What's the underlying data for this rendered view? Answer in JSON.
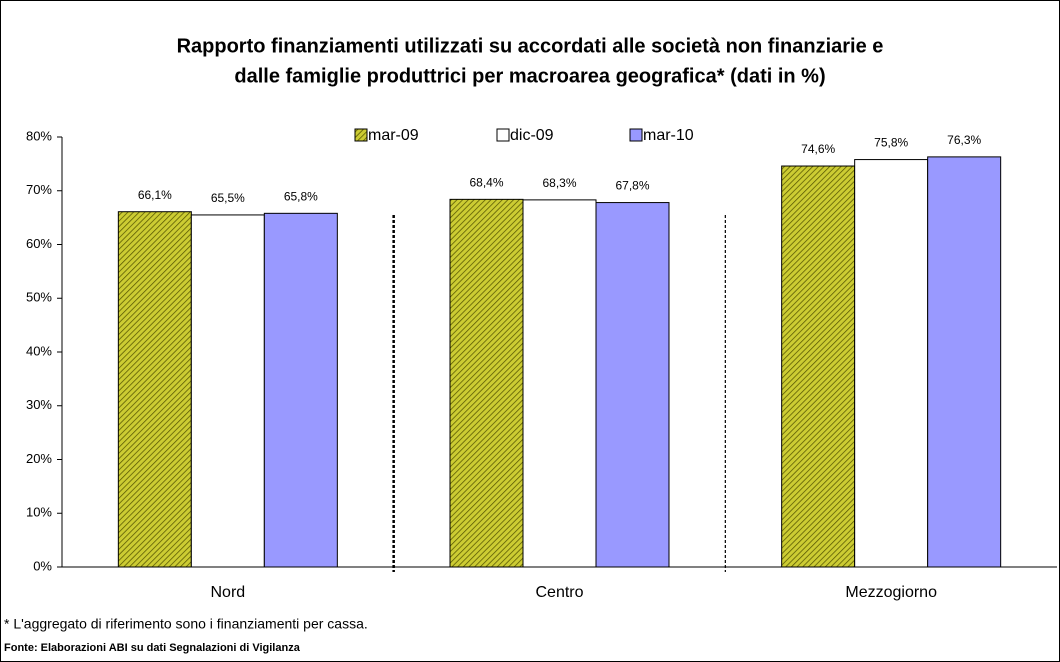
{
  "chart_data": {
    "type": "bar",
    "title": [
      "Rapporto finanziamenti utilizzati su accordati alle società non finanziarie e",
      "dalle famiglie produttrici per macroarea geografica* (dati in %)"
    ],
    "categories": [
      "Nord",
      "Centro",
      "Mezzogiorno"
    ],
    "series": [
      {
        "name": "mar-09",
        "color": "#cccc33",
        "pattern": "hatch",
        "values": [
          66.1,
          68.4,
          74.6
        ],
        "value_labels": [
          "66,1%",
          "68,4%",
          "74,6%"
        ]
      },
      {
        "name": "dic-09",
        "color": "#ffffff",
        "values": [
          65.5,
          68.3,
          75.8
        ],
        "value_labels": [
          "65,5%",
          "68,3%",
          "75,8%"
        ]
      },
      {
        "name": "mar-10",
        "color": "#9999ff",
        "values": [
          65.8,
          67.8,
          76.3
        ],
        "value_labels": [
          "65,8%",
          "67,8%",
          "76,3%"
        ]
      }
    ],
    "ylim": [
      0,
      80
    ],
    "yticks": [
      {
        "value": 0,
        "label": "0%"
      },
      {
        "value": 10,
        "label": "10%"
      },
      {
        "value": 20,
        "label": "20%"
      },
      {
        "value": 30,
        "label": "30%"
      },
      {
        "value": 40,
        "label": "40%"
      },
      {
        "value": 50,
        "label": "50%"
      },
      {
        "value": 60,
        "label": "60%"
      },
      {
        "value": 70,
        "label": "70%"
      },
      {
        "value": 80,
        "label": "80%"
      }
    ],
    "grid": false,
    "legend": "top",
    "note": "* L'aggregato di riferimento sono i finanziamenti per cassa.",
    "source": "Fonte: Elaborazioni ABI su dati Segnalazioni di Vigilanza"
  }
}
